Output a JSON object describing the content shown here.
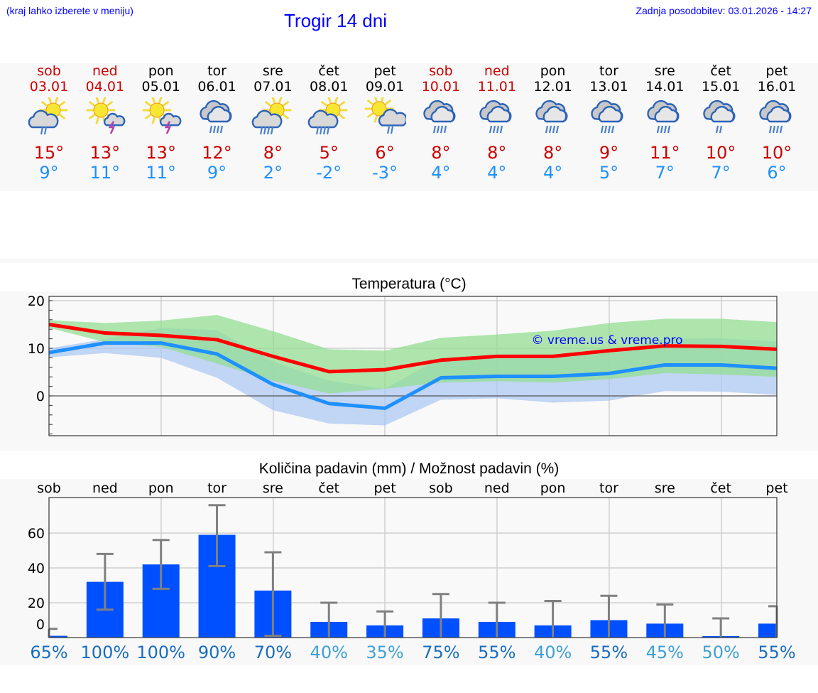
{
  "header": {
    "menu_hint": "(kraj lahko izberete v meniju)",
    "title": "Trogir 14 dni",
    "last_update": "Zadnja posodobitev: 03.01.2026 - 14:27"
  },
  "colors": {
    "header_text": "#0000ff",
    "weekend": "#cc0000",
    "tmax": "#cc0000",
    "tmin": "#1e90ff",
    "tmax_line": "#ff0000",
    "tmin_line": "#1e90ff",
    "tmax_band": "#aee9ae",
    "tmin_band": "#aec8f2",
    "precip_bar": "#0050ff",
    "error_bar": "#808080"
  },
  "days": [
    {
      "name": "sob",
      "date": "03.01",
      "weekend": true,
      "icon": "sun-cloud-rain-icon",
      "tmax": "15°",
      "tmin": "9°"
    },
    {
      "name": "ned",
      "date": "04.01",
      "weekend": true,
      "icon": "sun-cloud-thunder-icon",
      "tmax": "13°",
      "tmin": "11°"
    },
    {
      "name": "pon",
      "date": "05.01",
      "weekend": false,
      "icon": "sun-cloud-thunder-icon",
      "tmax": "13°",
      "tmin": "11°"
    },
    {
      "name": "tor",
      "date": "06.01",
      "weekend": false,
      "icon": "heavy-rain-cloud-icon",
      "tmax": "12°",
      "tmin": "9°"
    },
    {
      "name": "sre",
      "date": "07.01",
      "weekend": false,
      "icon": "sun-cloud-heavy-rain-icon",
      "tmax": "8°",
      "tmin": "2°"
    },
    {
      "name": "čet",
      "date": "08.01",
      "weekend": false,
      "icon": "sun-cloud-heavy-rain-icon",
      "tmax": "5°",
      "tmin": "-2°"
    },
    {
      "name": "pet",
      "date": "09.01",
      "weekend": false,
      "icon": "sun-cloud-light-rain-icon",
      "tmax": "6°",
      "tmin": "-3°"
    },
    {
      "name": "sob",
      "date": "10.01",
      "weekend": true,
      "icon": "heavy-rain-cloud-icon",
      "tmax": "8°",
      "tmin": "4°"
    },
    {
      "name": "ned",
      "date": "11.01",
      "weekend": true,
      "icon": "heavy-rain-cloud-icon",
      "tmax": "8°",
      "tmin": "4°"
    },
    {
      "name": "pon",
      "date": "12.01",
      "weekend": false,
      "icon": "heavy-rain-cloud-icon",
      "tmax": "8°",
      "tmin": "4°"
    },
    {
      "name": "tor",
      "date": "13.01",
      "weekend": false,
      "icon": "heavy-rain-cloud-icon",
      "tmax": "9°",
      "tmin": "5°"
    },
    {
      "name": "sre",
      "date": "14.01",
      "weekend": false,
      "icon": "heavy-rain-cloud-icon",
      "tmax": "11°",
      "tmin": "7°"
    },
    {
      "name": "čet",
      "date": "15.01",
      "weekend": false,
      "icon": "light-rain-cloud-icon",
      "tmax": "10°",
      "tmin": "7°"
    },
    {
      "name": "pet",
      "date": "16.01",
      "weekend": false,
      "icon": "heavy-rain-cloud-icon",
      "tmax": "10°",
      "tmin": "6°"
    }
  ],
  "temperature_chart": {
    "title": "Temperatura (°C)",
    "watermark": "© vreme.us & vreme.pro",
    "y_ticks": [
      "20",
      "10",
      "0"
    ]
  },
  "precip_chart": {
    "title": "Količina padavin (mm) / Možnost padavin (%)",
    "day_labels": [
      "sob",
      "ned",
      "pon",
      "tor",
      "sre",
      "čet",
      "pet",
      "sob",
      "ned",
      "pon",
      "tor",
      "sre",
      "čet",
      "pet"
    ],
    "y_ticks": [
      "60",
      "40",
      "20",
      "0"
    ],
    "probabilities": [
      "65%",
      "100%",
      "100%",
      "90%",
      "70%",
      "40%",
      "35%",
      "75%",
      "55%",
      "40%",
      "55%",
      "45%",
      "50%",
      "55%"
    ]
  },
  "chart_data": [
    {
      "type": "line",
      "title": "Temperatura (°C)",
      "xlabel": "",
      "ylabel": "°C",
      "categories": [
        "03.01",
        "04.01",
        "05.01",
        "06.01",
        "07.01",
        "08.01",
        "09.01",
        "10.01",
        "11.01",
        "12.01",
        "13.01",
        "14.01",
        "15.01",
        "16.01"
      ],
      "ylim": [
        -8.4,
        21
      ],
      "grid": true,
      "series": [
        {
          "name": "Tmax",
          "values": [
            15,
            13.2,
            12.7,
            11.8,
            8.3,
            5.1,
            5.5,
            7.5,
            8.3,
            8.3,
            9.5,
            10.5,
            10.4,
            9.8
          ]
        },
        {
          "name": "Tmin",
          "values": [
            9.1,
            11.1,
            11.1,
            8.8,
            2.4,
            -1.6,
            -2.6,
            3.8,
            4.1,
            4.1,
            4.7,
            6.5,
            6.5,
            5.8
          ]
        },
        {
          "name": "Tmax band low",
          "values": [
            14.3,
            11.3,
            10.3,
            6.8,
            3.2,
            0.5,
            1.5,
            2.8,
            3.1,
            2.8,
            3.5,
            4.8,
            4.5,
            4
          ]
        },
        {
          "name": "Tmax band high",
          "values": [
            15.9,
            15.3,
            15.8,
            17,
            13.6,
            9.8,
            9.5,
            12.2,
            12.9,
            13.7,
            15.3,
            16.2,
            16.2,
            15.5
          ]
        },
        {
          "name": "Tmin band low",
          "values": [
            8.1,
            9,
            8,
            3.8,
            -3,
            -5.8,
            -6.2,
            -0.8,
            -0.5,
            -1.4,
            -1,
            1,
            0.9,
            0.2
          ]
        },
        {
          "name": "Tmin band high",
          "values": [
            10,
            11.9,
            14.3,
            13.8,
            7.2,
            3.2,
            1.5,
            8,
            8.6,
            8.1,
            9.2,
            12,
            12.1,
            11.4
          ]
        }
      ]
    },
    {
      "type": "bar",
      "title": "Količina padavin (mm) / Možnost padavin (%)",
      "xlabel": "",
      "ylabel": "mm",
      "categories": [
        "sob",
        "ned",
        "pon",
        "tor",
        "sre",
        "čet",
        "pet",
        "sob",
        "ned",
        "pon",
        "tor",
        "sre",
        "čet",
        "pet"
      ],
      "ylim": [
        0,
        80
      ],
      "grid": true,
      "series": [
        {
          "name": "Količina padavin (mm)",
          "values": [
            1,
            32,
            42,
            59,
            27,
            9,
            7,
            11,
            9,
            7,
            10,
            8,
            0.5,
            8
          ]
        },
        {
          "name": "error_low",
          "values": [
            0,
            16,
            28,
            41,
            1,
            0,
            0,
            0,
            0,
            0,
            0,
            0,
            0,
            0
          ]
        },
        {
          "name": "error_high",
          "values": [
            5,
            48,
            56,
            76,
            49,
            20,
            15,
            25,
            20,
            21,
            24,
            19,
            11,
            18
          ]
        },
        {
          "name": "Možnost padavin (%)",
          "values": [
            65,
            100,
            100,
            90,
            70,
            40,
            35,
            75,
            55,
            40,
            55,
            45,
            50,
            55
          ]
        }
      ]
    }
  ]
}
